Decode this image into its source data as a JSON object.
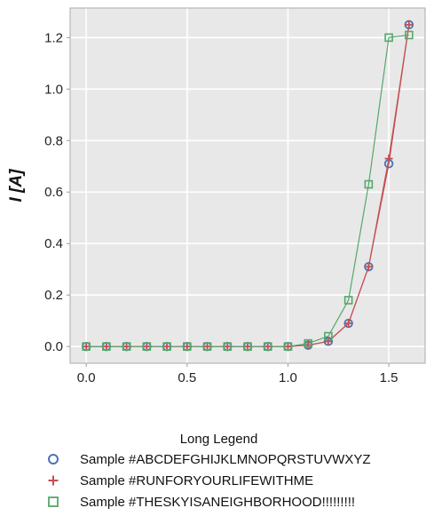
{
  "chart_data": {
    "type": "line",
    "title": "",
    "xlabel": "",
    "ylabel": "I [A]",
    "xlim": [
      -0.08,
      1.68
    ],
    "ylim": [
      -0.065,
      1.315
    ],
    "x_ticks": [
      0.0,
      0.5,
      1.0,
      1.5
    ],
    "x_tick_labels": [
      "0.0",
      "0.5",
      "1.0",
      "1.5"
    ],
    "y_ticks": [
      0.0,
      0.2,
      0.4,
      0.6,
      0.8,
      1.0,
      1.2
    ],
    "y_tick_labels": [
      "0.0",
      "0.2",
      "0.4",
      "0.6",
      "0.8",
      "1.0",
      "1.2"
    ],
    "grid": true,
    "background": "#e8e8e8",
    "legend": {
      "title": "Long Legend",
      "placement": "bottom"
    },
    "series": [
      {
        "name": "Sample #ABCDEFGHIJKLMNOPQRSTUVWXYZ",
        "marker": "circle",
        "color": "#4c72b0",
        "line_color": "#c44e52",
        "x": [
          0.0,
          0.1,
          0.2,
          0.3,
          0.4,
          0.5,
          0.6,
          0.7,
          0.8,
          0.9,
          1.0,
          1.1,
          1.2,
          1.3,
          1.4,
          1.5,
          1.6
        ],
        "y": [
          0,
          0,
          0,
          0,
          0,
          0,
          0,
          0,
          0,
          0,
          0,
          0.005,
          0.02,
          0.09,
          0.31,
          0.71,
          1.25
        ]
      },
      {
        "name": "Sample #RUNFORYOURLIFEWITHME",
        "marker": "plus",
        "color": "#c44e52",
        "line_color": "#c44e52",
        "x": [
          0.0,
          0.1,
          0.2,
          0.3,
          0.4,
          0.5,
          0.6,
          0.7,
          0.8,
          0.9,
          1.0,
          1.1,
          1.2,
          1.3,
          1.4,
          1.5,
          1.6
        ],
        "y": [
          0,
          0,
          0,
          0,
          0,
          0,
          0,
          0,
          0,
          0,
          0,
          0.005,
          0.02,
          0.09,
          0.31,
          0.73,
          1.25
        ]
      },
      {
        "name": "Sample #THESKYISANEIGHBORHOOD!!!!!!!!!",
        "marker": "square",
        "color": "#55a868",
        "line_color": "#55a868",
        "x": [
          0.0,
          0.1,
          0.2,
          0.3,
          0.4,
          0.5,
          0.6,
          0.7,
          0.8,
          0.9,
          1.0,
          1.1,
          1.2,
          1.3,
          1.4,
          1.5,
          1.6
        ],
        "y": [
          0,
          0,
          0,
          0,
          0,
          0,
          0,
          0,
          0,
          0,
          0,
          0.012,
          0.04,
          0.18,
          0.63,
          1.2,
          1.21
        ]
      }
    ]
  }
}
